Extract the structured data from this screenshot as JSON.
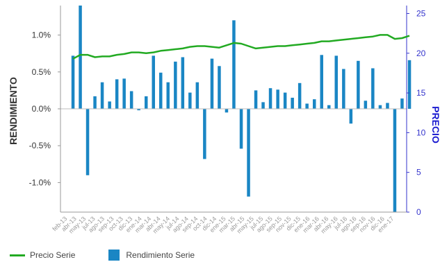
{
  "chart_data": {
    "type": "bar+line",
    "ylabel_left": "RENDIMIENTO",
    "ylabel_right": "PRECIO",
    "left_axis": {
      "min": -1.4,
      "max": 1.4,
      "ticks": [
        -1.0,
        -0.5,
        0.0,
        0.5,
        1.0
      ],
      "tick_labels": [
        "-1.0%",
        "-0.5%",
        "0.0%",
        "0.5%",
        "1.0%"
      ]
    },
    "right_axis": {
      "min": 0,
      "max": 26,
      "ticks": [
        0,
        5,
        10,
        15,
        20,
        25
      ],
      "tick_labels": [
        "0",
        "5",
        "10",
        "15",
        "20",
        "25"
      ]
    },
    "x_labels": [
      "feb-13",
      "abr-13",
      "may-13",
      "jul-13",
      "ago-13",
      "sep-13",
      "oct-13",
      "dic-13",
      "ene-14",
      "mar-14",
      "abr-14",
      "may-14",
      "jul-14",
      "ago-14",
      "sep-14",
      "oct-14",
      "dic-14",
      "ene-15",
      "mar-15",
      "abr-15",
      "may-15",
      "jul-15",
      "ago-15",
      "sep-15",
      "nov-15",
      "dic-15",
      "ene-16",
      "mar-16",
      "abr-16",
      "may-16",
      "jul-16",
      "ago-16",
      "sep-16",
      "nov-16",
      "dic-16",
      "ene-17"
    ],
    "series": [
      {
        "name": "Rendimiento Serie",
        "type": "bar",
        "axis": "left",
        "color": "#1a86c4",
        "values": [
          0.72,
          1.4,
          -0.9,
          0.17,
          0.36,
          0.1,
          0.4,
          0.41,
          0.24,
          -0.02,
          0.17,
          0.72,
          0.49,
          0.36,
          0.64,
          0.7,
          0.22,
          0.36,
          -0.68,
          0.68,
          0.58,
          -0.05,
          1.2,
          -0.54,
          -1.19,
          0.25,
          0.09,
          0.28,
          0.26,
          0.22,
          0.15,
          0.35,
          0.07,
          0.13,
          0.73,
          0.05,
          0.72,
          0.54,
          -0.2,
          0.65,
          0.11,
          0.55,
          0.05,
          0.08,
          -1.4,
          0.14,
          0.66
        ]
      },
      {
        "name": "Precio Serie",
        "type": "line",
        "axis": "right",
        "color": "#22aa22",
        "values": [
          19.3,
          19.8,
          19.8,
          19.5,
          19.6,
          19.6,
          19.8,
          19.9,
          20.1,
          20.1,
          20.0,
          20.1,
          20.3,
          20.4,
          20.5,
          20.6,
          20.8,
          20.9,
          20.9,
          20.8,
          20.7,
          21.0,
          21.3,
          21.2,
          20.9,
          20.6,
          20.7,
          20.8,
          20.9,
          20.9,
          21.0,
          21.1,
          21.2,
          21.3,
          21.5,
          21.5,
          21.6,
          21.7,
          21.8,
          21.9,
          22.0,
          22.1,
          22.3,
          22.3,
          21.8,
          21.9,
          22.2
        ]
      }
    ],
    "grid": false,
    "legend_position": "bottom-left"
  }
}
